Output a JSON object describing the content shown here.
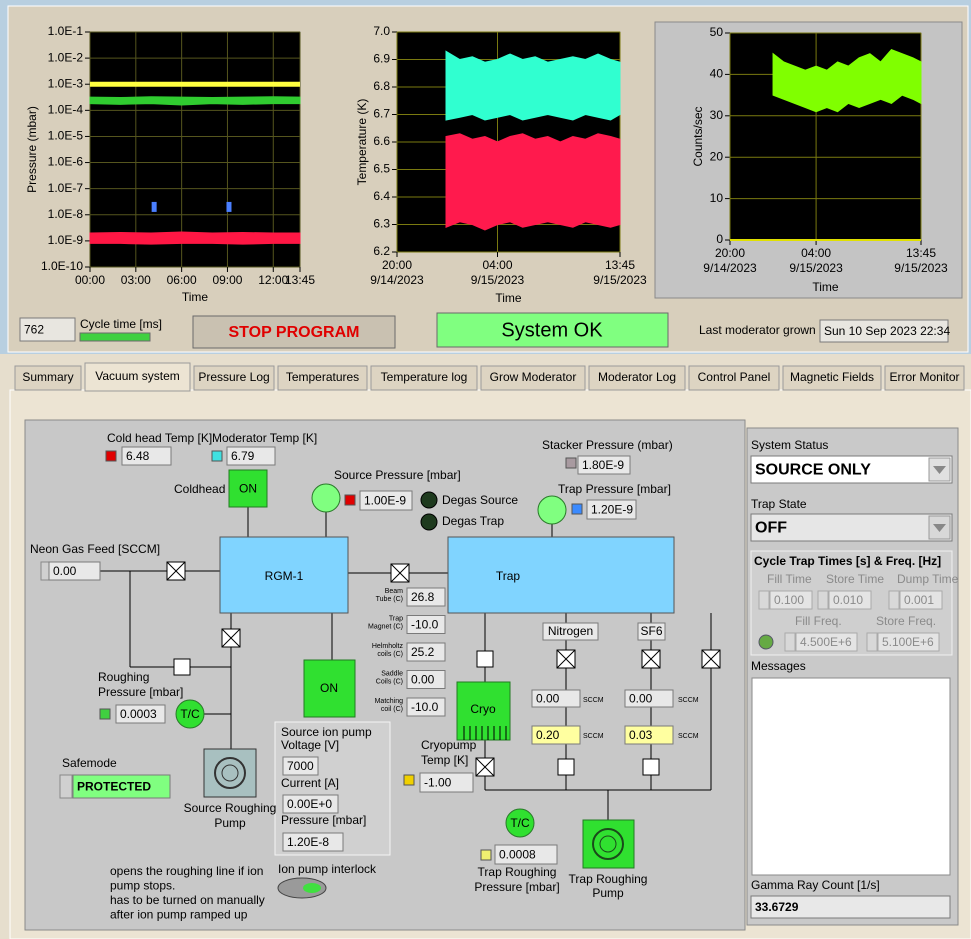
{
  "header": {
    "cycle_time_value": "762",
    "cycle_time_label": "Cycle time [ms]",
    "stop_button": "STOP PROGRAM",
    "status": "System OK",
    "last_moderator_label": "Last moderator grown",
    "last_moderator_value": "Sun 10 Sep 2023 22:34"
  },
  "charts": [
    {
      "type": "line",
      "y_label": "Pressure (mbar)",
      "x_label": "Time",
      "log_y": true,
      "grid": true,
      "ylim": [
        1e-10,
        0.1
      ],
      "yticks": [
        {
          "value": 0.1,
          "label": "1.0E-1"
        },
        {
          "value": 0.01,
          "label": "1.0E-2"
        },
        {
          "value": 0.001,
          "label": "1.0E-3"
        },
        {
          "value": 0.0001,
          "label": "1.0E-4"
        },
        {
          "value": 1e-05,
          "label": "1.0E-5"
        },
        {
          "value": 1e-06,
          "label": "1.0E-6"
        },
        {
          "value": 1e-07,
          "label": "1.0E-7"
        },
        {
          "value": 1e-08,
          "label": "1.0E-8"
        },
        {
          "value": 1e-09,
          "label": "1.0E-9"
        },
        {
          "value": 1e-10,
          "label": "1.0E-10"
        }
      ],
      "xlim": [
        0,
        13.75
      ],
      "xticks": [
        {
          "value": 0,
          "label": "00:00"
        },
        {
          "value": 3,
          "label": "03:00"
        },
        {
          "value": 6,
          "label": "06:00"
        },
        {
          "value": 9,
          "label": "09:00"
        },
        {
          "value": 12,
          "label": "12:00"
        },
        {
          "value": 13.75,
          "label": "13:45"
        }
      ],
      "series": [
        {
          "style": "line",
          "color": "#ffff40",
          "x": [
            0,
            13.75
          ],
          "values": [
            0.001,
            0.001
          ]
        },
        {
          "style": "band",
          "color": "#30cc30",
          "x": [
            0,
            2,
            4,
            6,
            8,
            10,
            12,
            13.75
          ],
          "low": [
            0.00018,
            0.00017,
            0.00018,
            0.00016,
            0.00018,
            0.00017,
            0.00018,
            0.00018
          ],
          "high": [
            0.00032,
            0.00031,
            0.00033,
            0.00032,
            0.00031,
            0.00032,
            0.00033,
            0.00032
          ]
        },
        {
          "style": "band",
          "color": "#ff1744",
          "x": [
            0,
            2,
            4,
            6,
            8,
            10,
            12,
            13.75
          ],
          "low": [
            8e-10,
            8e-10,
            7.5e-10,
            8e-10,
            8e-10,
            7.5e-10,
            8e-10,
            8e-10
          ],
          "high": [
            2e-09,
            2.1e-09,
            2e-09,
            2.2e-09,
            2e-09,
            2.1e-09,
            2e-09,
            2e-09
          ]
        },
        {
          "style": "points",
          "color": "#4a7fff",
          "x": [
            4.2,
            9.1
          ],
          "values": [
            2e-08,
            2e-08
          ]
        }
      ]
    },
    {
      "type": "line",
      "y_label": "Temperature (K)",
      "x_label": "Time",
      "log_y": false,
      "grid": true,
      "ylim": [
        6.2,
        7.0
      ],
      "yticks": [
        6.2,
        6.3,
        6.4,
        6.5,
        6.6,
        6.7,
        6.8,
        6.9,
        {
          "value": 7.0,
          "label": "7.0"
        }
      ],
      "xlim": [
        0,
        17.75
      ],
      "xticks": [
        {
          "value": 0,
          "label": [
            "20:00",
            "9/14/2023"
          ]
        },
        {
          "value": 8,
          "label": [
            "04:00",
            "9/15/2023"
          ]
        },
        {
          "value": 17.75,
          "label": [
            "13:45",
            "9/15/2023"
          ]
        }
      ],
      "series": [
        {
          "style": "band",
          "color": "#30ffd0",
          "x": [
            3.9,
            5,
            6,
            7,
            8,
            9,
            10,
            11,
            12,
            13,
            14,
            15,
            16,
            17,
            17.75
          ],
          "low": [
            6.68,
            6.69,
            6.7,
            6.68,
            6.69,
            6.7,
            6.68,
            6.69,
            6.7,
            6.69,
            6.68,
            6.7,
            6.69,
            6.68,
            6.7
          ],
          "high": [
            6.93,
            6.9,
            6.91,
            6.89,
            6.9,
            6.92,
            6.9,
            6.91,
            6.89,
            6.9,
            6.91,
            6.9,
            6.92,
            6.9,
            6.89
          ]
        },
        {
          "style": "band",
          "color": "#ff1a4d",
          "x": [
            3.9,
            5,
            6,
            7,
            8,
            9,
            10,
            11,
            12,
            13,
            14,
            15,
            16,
            17,
            17.75
          ],
          "low": [
            6.29,
            6.31,
            6.3,
            6.28,
            6.3,
            6.31,
            6.29,
            6.3,
            6.31,
            6.3,
            6.29,
            6.31,
            6.3,
            6.29,
            6.3
          ],
          "high": [
            6.62,
            6.63,
            6.61,
            6.62,
            6.6,
            6.62,
            6.63,
            6.61,
            6.62,
            6.6,
            6.62,
            6.61,
            6.63,
            6.62,
            6.61
          ]
        }
      ]
    },
    {
      "type": "line",
      "y_label": "Counts/sec",
      "x_label": "Time",
      "log_y": false,
      "grid": true,
      "ylim": [
        0,
        50
      ],
      "yticks": [
        0,
        10,
        20,
        30,
        40,
        50
      ],
      "xlim": [
        0,
        17.75
      ],
      "xticks": [
        {
          "value": 0,
          "label": [
            "20:00",
            "9/14/2023"
          ]
        },
        {
          "value": 8,
          "label": [
            "04:00",
            "9/15/2023"
          ]
        },
        {
          "value": 17.75,
          "label": [
            "13:45",
            "9/15/2023"
          ]
        }
      ],
      "series": [
        {
          "style": "line",
          "color": "#e0e000",
          "x": [
            0,
            17.75
          ],
          "values": [
            0,
            0
          ]
        },
        {
          "style": "band",
          "color": "#80ff00",
          "x": [
            4,
            5,
            6,
            7,
            8,
            9,
            10,
            11,
            12,
            13,
            14,
            15,
            16,
            17,
            17.75
          ],
          "low": [
            35,
            34,
            33,
            32,
            31,
            32,
            31,
            33,
            32,
            33,
            34,
            33,
            35,
            34,
            33
          ],
          "high": [
            45,
            43,
            42,
            41,
            42,
            41,
            43,
            42,
            44,
            45,
            43,
            46,
            45,
            44,
            43
          ]
        }
      ]
    }
  ],
  "tabs": [
    "Summary",
    "Vacuum system",
    "Pressure Log",
    "Temperatures",
    "Temperature log",
    "Grow Moderator",
    "Moderator Log",
    "Control Panel",
    "Magnetic Fields",
    "Error Monitor"
  ],
  "active_tab": 1,
  "vacuum": {
    "cold_head_temp": {
      "label": "Cold head Temp [K]",
      "value": "6.48"
    },
    "moderator_temp": {
      "label": "Moderator Temp [K]",
      "value": "6.79"
    },
    "coldhead": {
      "label": "Coldhead",
      "state": "ON"
    },
    "source_pressure": {
      "label": "Source Pressure [mbar]",
      "value": "1.00E-9"
    },
    "degas_source": "Degas Source",
    "degas_trap": "Degas Trap",
    "stacker_pressure": {
      "label": "Stacker Pressure (mbar)",
      "value": "1.80E-9"
    },
    "trap_pressure": {
      "label": "Trap Pressure [mbar]",
      "value": "1.20E-9"
    },
    "neon_feed": {
      "label": "Neon Gas Feed [SCCM]",
      "value": "0.00"
    },
    "rgm": "RGM-1",
    "trap": "Trap",
    "sensors": [
      {
        "label": [
          "Beam",
          "Tube (C)"
        ],
        "value": "26.8"
      },
      {
        "label": [
          "Trap",
          "Magnet (C)"
        ],
        "value": "-10.0"
      },
      {
        "label": [
          "Helmholtz",
          "coils (C)"
        ],
        "value": "25.2"
      },
      {
        "label": [
          "Saddle",
          "Coils (C)"
        ],
        "value": "0.00"
      },
      {
        "label": [
          "Matching",
          "coil (C)"
        ],
        "value": "-10.0"
      }
    ],
    "gases": [
      {
        "name": "Nitrogen",
        "actual": "0.00",
        "actual_unit": "SCCM",
        "setpoint": "0.20",
        "setpoint_unit": "SCCM"
      },
      {
        "name": "SF6",
        "actual": "0.00",
        "actual_unit": "SCCM",
        "setpoint": "0.03",
        "setpoint_unit": "SCCM"
      }
    ],
    "ion_pump_state": "ON",
    "roughing_pressure": {
      "label": [
        "Roughing",
        "Pressure [mbar]"
      ],
      "value": "0.0003",
      "gauge": "T/C"
    },
    "cryo": "Cryo",
    "cryopump_temp": {
      "label": [
        "Cryopump",
        "Temp [K]"
      ],
      "value": "-1.00"
    },
    "ion_pump": {
      "voltage_label": [
        "Source ion pump",
        "Voltage [V]"
      ],
      "voltage": "7000",
      "current_label": "Current [A]",
      "current": "0.00E+0",
      "pressure_label": "Pressure [mbar]",
      "pressure": "1.20E-8"
    },
    "safemode": {
      "label": "Safemode",
      "value": "PROTECTED"
    },
    "source_roughing_pump": [
      "Source Roughing",
      "Pump"
    ],
    "trap_roughing": {
      "gauge": "T/C",
      "value": "0.0008",
      "label": [
        "Trap Roughing",
        "Pressure [mbar]"
      ],
      "pump": [
        "Trap Roughing",
        "Pump"
      ]
    },
    "note": [
      "opens the roughing line if ion",
      "pump stops.",
      "has to be turned on manually",
      "after ion pump ramped up"
    ],
    "interlock": "Ion pump interlock"
  },
  "side_panel": {
    "system_status_label": "System Status",
    "system_status": "SOURCE ONLY",
    "trap_state_label": "Trap State",
    "trap_state": "OFF",
    "cycle_title": "Cycle Trap Times [s] & Freq. [Hz]",
    "fill_time": {
      "label": "Fill Time",
      "value": "0.100"
    },
    "store_time": {
      "label": "Store Time",
      "value": "0.010"
    },
    "dump_time": {
      "label": "Dump Time",
      "value": "0.001"
    },
    "fill_freq": {
      "label": "Fill Freq.",
      "value": "4.500E+6"
    },
    "store_freq": {
      "label": "Store Freq.",
      "value": "5.100E+6"
    },
    "messages": "Messages",
    "gamma": {
      "label": "Gamma Ray Count [1/s]",
      "value": "33.6729"
    }
  }
}
